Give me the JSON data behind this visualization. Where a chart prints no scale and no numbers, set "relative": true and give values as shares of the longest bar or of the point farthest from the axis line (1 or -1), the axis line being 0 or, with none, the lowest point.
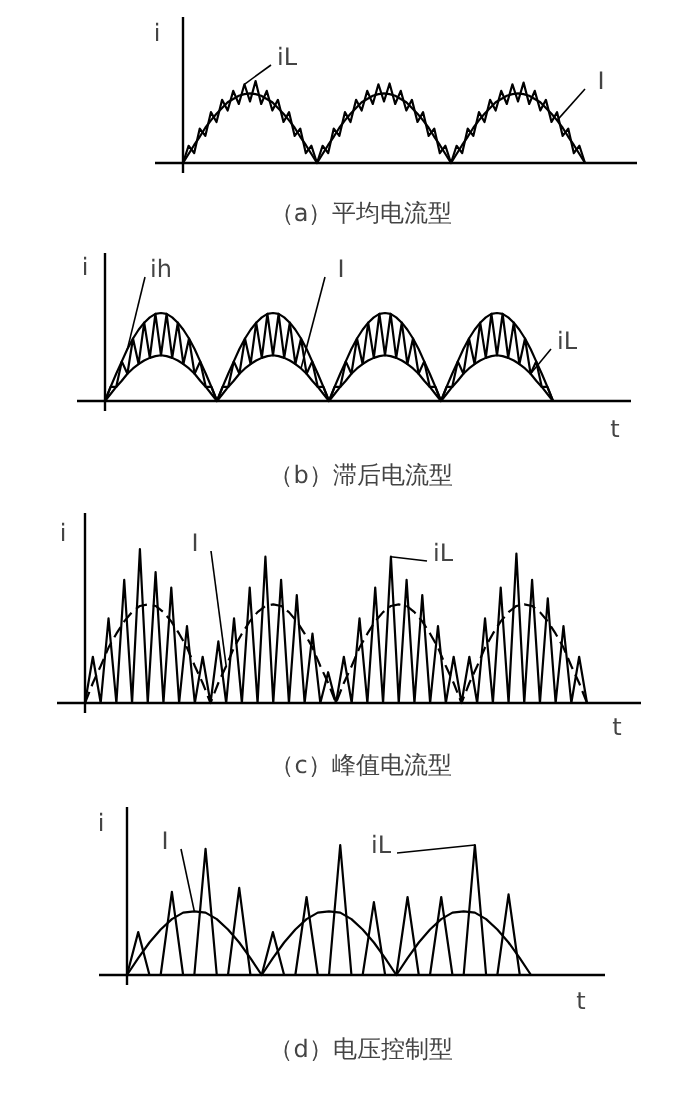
{
  "chart_data": [
    {
      "type": "line",
      "title": "（a）平均电流型",
      "ylabel": "i",
      "relative": true,
      "categories": [
        null,
        null,
        null,
        null,
        null,
        null,
        null,
        null,
        null,
        null,
        null,
        null,
        null,
        null,
        null,
        null,
        null,
        null,
        null,
        null,
        null,
        null,
        null,
        null,
        null,
        null,
        null,
        null,
        null,
        null,
        null,
        null,
        null,
        null,
        null,
        null,
        null,
        null,
        null,
        null,
        null,
        null,
        null,
        null,
        null,
        null,
        null,
        null,
        null,
        null,
        null,
        null,
        null,
        null,
        null,
        null,
        null,
        null,
        null,
        null,
        null,
        null,
        null,
        null,
        null,
        null,
        null,
        null,
        null,
        null,
        null,
        null,
        null
      ],
      "series": [
        {
          "name": "iL",
          "color": "#000000",
          "values": [
            0,
            0.21,
            0.12,
            0.42,
            0.33,
            0.62,
            0.5,
            0.77,
            0.64,
            0.88,
            0.72,
            0.96,
            0.75,
            1.0,
            0.72,
            0.88,
            0.64,
            0.77,
            0.5,
            0.62,
            0.33,
            0.42,
            0.12,
            0.21,
            0,
            0.21,
            0.12,
            0.42,
            0.33,
            0.62,
            0.5,
            0.77,
            0.64,
            0.88,
            0.72,
            0.96,
            0.75,
            0.97,
            0.72,
            0.88,
            0.64,
            0.77,
            0.5,
            0.62,
            0.33,
            0.42,
            0.12,
            0.21,
            0,
            0.21,
            0.12,
            0.42,
            0.33,
            0.62,
            0.5,
            0.77,
            0.64,
            0.88,
            0.72,
            0.96,
            0.75,
            0.98,
            0.72,
            0.88,
            0.64,
            0.77,
            0.5,
            0.62,
            0.33,
            0.42,
            0.12,
            0.21,
            0
          ]
        },
        {
          "name": "I",
          "color": "#000000",
          "values": [
            0,
            0.11,
            0.22,
            0.32,
            0.43,
            0.52,
            0.6,
            0.67,
            0.74,
            0.78,
            0.82,
            0.84,
            0.85,
            0.84,
            0.82,
            0.78,
            0.74,
            0.67,
            0.6,
            0.52,
            0.43,
            0.32,
            0.22,
            0.11,
            0,
            0.11,
            0.22,
            0.32,
            0.43,
            0.52,
            0.6,
            0.67,
            0.74,
            0.78,
            0.82,
            0.84,
            0.85,
            0.84,
            0.82,
            0.78,
            0.74,
            0.67,
            0.6,
            0.52,
            0.43,
            0.32,
            0.22,
            0.11,
            0,
            0.11,
            0.22,
            0.32,
            0.43,
            0.52,
            0.6,
            0.67,
            0.74,
            0.78,
            0.82,
            0.84,
            0.85,
            0.84,
            0.82,
            0.78,
            0.74,
            0.67,
            0.6,
            0.52,
            0.43,
            0.32,
            0.22,
            0.11,
            0
          ]
        }
      ]
    },
    {
      "type": "line",
      "title": "（b）滞后电流型",
      "xlabel": "t",
      "ylabel": "i",
      "relative": true,
      "categories": [
        null,
        null,
        null,
        null,
        null,
        null,
        null,
        null,
        null,
        null,
        null,
        null,
        null,
        null,
        null,
        null,
        null,
        null,
        null,
        null,
        null,
        null,
        null,
        null,
        null,
        null,
        null,
        null,
        null,
        null,
        null,
        null,
        null,
        null,
        null,
        null,
        null,
        null,
        null,
        null,
        null,
        null,
        null,
        null,
        null,
        null,
        null,
        null,
        null,
        null,
        null,
        null,
        null,
        null,
        null,
        null,
        null,
        null,
        null,
        null,
        null,
        null,
        null,
        null,
        null,
        null,
        null,
        null,
        null,
        null,
        null,
        null,
        null,
        null,
        null,
        null,
        null,
        null,
        null,
        null,
        null
      ],
      "series": [
        {
          "name": "ih",
          "color": "#000000",
          "values": [
            0,
            0.16,
            0.31,
            0.45,
            0.59,
            0.71,
            0.81,
            0.89,
            0.95,
            0.99,
            1,
            0.99,
            0.95,
            0.89,
            0.81,
            0.71,
            0.59,
            0.45,
            0.31,
            0.16,
            0,
            0.16,
            0.31,
            0.45,
            0.59,
            0.71,
            0.81,
            0.89,
            0.95,
            0.99,
            1,
            0.99,
            0.95,
            0.89,
            0.81,
            0.71,
            0.59,
            0.45,
            0.31,
            0.16,
            0,
            0.16,
            0.31,
            0.45,
            0.59,
            0.71,
            0.81,
            0.89,
            0.95,
            0.99,
            1,
            0.99,
            0.95,
            0.89,
            0.81,
            0.71,
            0.59,
            0.45,
            0.31,
            0.16,
            0,
            0.16,
            0.31,
            0.45,
            0.59,
            0.71,
            0.81,
            0.89,
            0.95,
            0.99,
            1,
            0.99,
            0.95,
            0.89,
            0.81,
            0.71,
            0.59,
            0.45,
            0.31,
            0.16,
            0
          ]
        },
        {
          "name": "I",
          "color": "#000000",
          "values": [
            0,
            0.08,
            0.16,
            0.23,
            0.31,
            0.37,
            0.42,
            0.46,
            0.49,
            0.51,
            0.52,
            0.51,
            0.49,
            0.46,
            0.42,
            0.37,
            0.31,
            0.23,
            0.16,
            0.08,
            0,
            0.08,
            0.16,
            0.23,
            0.31,
            0.37,
            0.42,
            0.46,
            0.49,
            0.51,
            0.52,
            0.51,
            0.49,
            0.46,
            0.42,
            0.37,
            0.31,
            0.23,
            0.16,
            0.08,
            0,
            0.08,
            0.16,
            0.23,
            0.31,
            0.37,
            0.42,
            0.46,
            0.49,
            0.51,
            0.52,
            0.51,
            0.49,
            0.46,
            0.42,
            0.37,
            0.31,
            0.23,
            0.16,
            0.08,
            0,
            0.08,
            0.16,
            0.23,
            0.31,
            0.37,
            0.42,
            0.46,
            0.49,
            0.51,
            0.52,
            0.51,
            0.49,
            0.46,
            0.42,
            0.37,
            0.31,
            0.23,
            0.16,
            0.08,
            0
          ]
        },
        {
          "name": "iL",
          "color": "#000000",
          "values": [
            0,
            0.16,
            0.16,
            0.45,
            0.31,
            0.71,
            0.42,
            0.89,
            0.49,
            0.99,
            0.52,
            0.99,
            0.49,
            0.89,
            0.42,
            0.71,
            0.31,
            0.45,
            0.16,
            0.16,
            0,
            0.16,
            0.16,
            0.45,
            0.31,
            0.71,
            0.42,
            0.89,
            0.49,
            0.99,
            0.52,
            0.99,
            0.49,
            0.89,
            0.42,
            0.71,
            0.31,
            0.45,
            0.16,
            0.16,
            0,
            0.16,
            0.16,
            0.45,
            0.31,
            0.71,
            0.42,
            0.89,
            0.49,
            0.99,
            0.52,
            0.99,
            0.49,
            0.89,
            0.42,
            0.71,
            0.31,
            0.45,
            0.16,
            0.16,
            0,
            0.16,
            0.16,
            0.45,
            0.31,
            0.71,
            0.42,
            0.89,
            0.49,
            0.99,
            0.52,
            0.99,
            0.49,
            0.89,
            0.42,
            0.71,
            0.31,
            0.45,
            0.16,
            0.16,
            0
          ]
        }
      ]
    },
    {
      "type": "line",
      "title": "（c）峰值电流型",
      "xlabel": "t",
      "ylabel": "i",
      "relative": true,
      "categories": [
        null,
        null,
        null,
        null,
        null,
        null,
        null,
        null,
        null,
        null,
        null,
        null,
        null,
        null,
        null,
        null,
        null,
        null,
        null,
        null,
        null,
        null,
        null,
        null,
        null,
        null,
        null,
        null,
        null,
        null,
        null,
        null,
        null,
        null,
        null,
        null,
        null,
        null,
        null,
        null,
        null,
        null,
        null,
        null,
        null,
        null,
        null,
        null,
        null,
        null,
        null,
        null,
        null,
        null,
        null,
        null,
        null,
        null,
        null,
        null,
        null,
        null,
        null,
        null,
        null
      ],
      "series": [
        {
          "name": "iL",
          "color": "#000000",
          "values": [
            0,
            0.3,
            0,
            0.55,
            0,
            0.8,
            0,
            1.0,
            0,
            0.85,
            0,
            0.75,
            0,
            0.5,
            0,
            0.3,
            0,
            0.4,
            0,
            0.55,
            0,
            0.75,
            0,
            0.95,
            0,
            0.8,
            0,
            0.7,
            0,
            0.45,
            0,
            0.2,
            0,
            0.3,
            0,
            0.55,
            0,
            0.75,
            0,
            0.95,
            0,
            0.8,
            0,
            0.7,
            0,
            0.5,
            0,
            0.3,
            0,
            0.3,
            0,
            0.55,
            0,
            0.75,
            0,
            0.97,
            0,
            0.8,
            0,
            0.68,
            0,
            0.5,
            0,
            0.3,
            0
          ]
        },
        {
          "name": "I",
          "color": "#000000",
          "line_style": "dashed",
          "values": [
            0,
            0.13,
            0.24,
            0.36,
            0.45,
            0.53,
            0.59,
            0.63,
            0.64,
            0.63,
            0.59,
            0.53,
            0.45,
            0.36,
            0.24,
            0.13,
            0,
            0.13,
            0.24,
            0.36,
            0.45,
            0.53,
            0.59,
            0.63,
            0.64,
            0.63,
            0.59,
            0.53,
            0.45,
            0.36,
            0.24,
            0.13,
            0,
            0.13,
            0.24,
            0.36,
            0.45,
            0.53,
            0.59,
            0.63,
            0.64,
            0.63,
            0.59,
            0.53,
            0.45,
            0.36,
            0.24,
            0.13,
            0,
            0.13,
            0.24,
            0.36,
            0.45,
            0.53,
            0.59,
            0.63,
            0.64,
            0.63,
            0.59,
            0.53,
            0.45,
            0.36,
            0.24,
            0.13,
            0
          ]
        }
      ]
    },
    {
      "type": "line",
      "title": "（d）电压控制型",
      "xlabel": "t",
      "ylabel": "i",
      "relative": true,
      "categories": [
        null,
        null,
        null,
        null,
        null,
        null,
        null,
        null,
        null,
        null,
        null,
        null,
        null,
        null,
        null,
        null,
        null,
        null,
        null,
        null,
        null,
        null,
        null,
        null,
        null,
        null,
        null,
        null,
        null,
        null,
        null,
        null,
        null,
        null,
        null,
        null,
        null
      ],
      "series": [
        {
          "name": "iL",
          "color": "#000000",
          "values": [
            0,
            0.33,
            0,
            0,
            0.64,
            0,
            0,
            0.97,
            0,
            0,
            0.67,
            0,
            0,
            0.33,
            0,
            0,
            0.6,
            0,
            0,
            1.0,
            0,
            0,
            0.56,
            0,
            0,
            0.6,
            0,
            0,
            0.6,
            0,
            0,
            1.0,
            0,
            0,
            0.62,
            0,
            0
          ]
        },
        {
          "name": "I",
          "color": "#000000",
          "values": [
            0,
            0.13,
            0.25,
            0.35,
            0.43,
            0.48,
            0.49,
            0.48,
            0.43,
            0.35,
            0.25,
            0.13,
            0,
            0.13,
            0.25,
            0.35,
            0.43,
            0.48,
            0.49,
            0.48,
            0.43,
            0.35,
            0.25,
            0.13,
            0,
            0.13,
            0.25,
            0.35,
            0.43,
            0.48,
            0.49,
            0.48,
            0.43,
            0.35,
            0.25,
            0.13,
            0
          ]
        }
      ]
    }
  ]
}
